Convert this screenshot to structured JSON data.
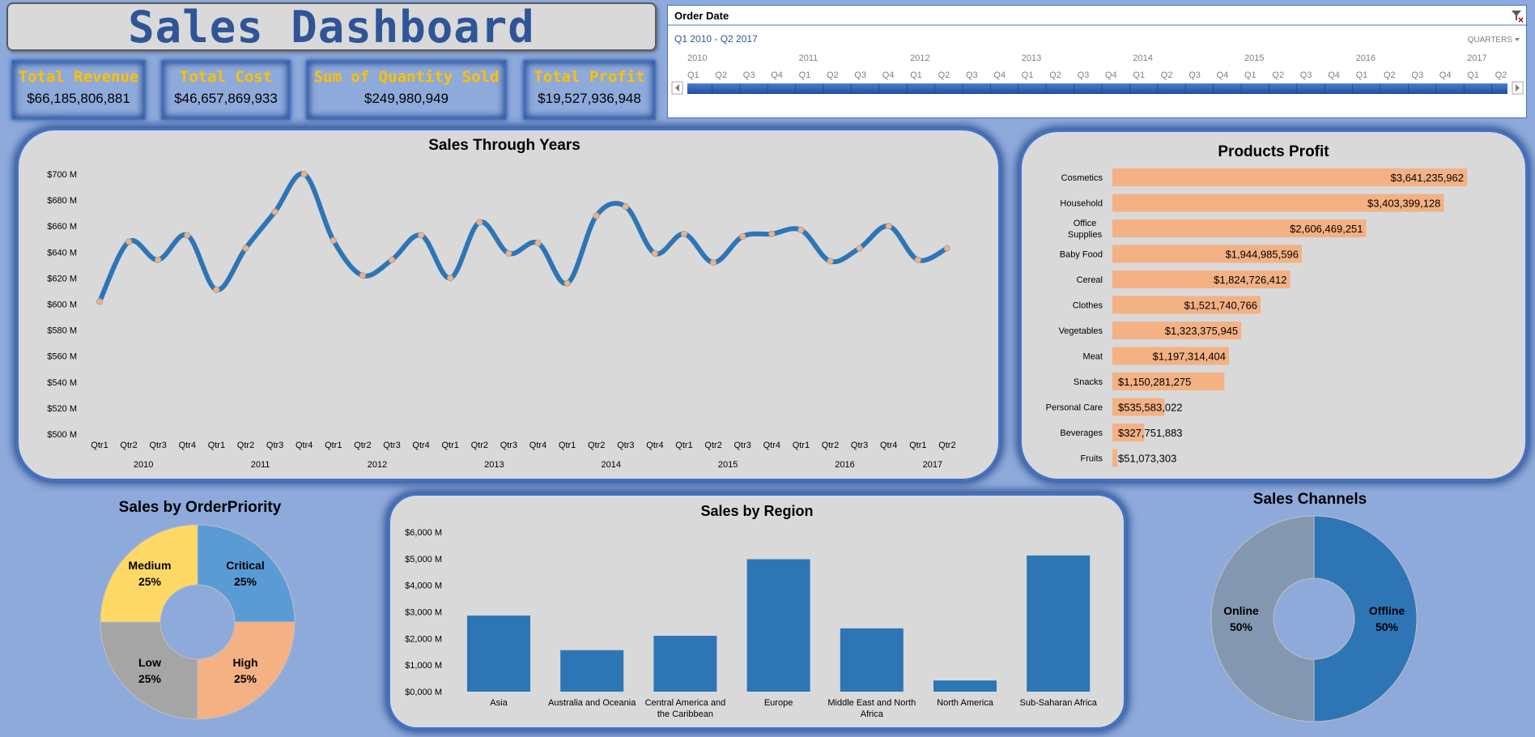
{
  "header": {
    "title": "Sales Dashboard"
  },
  "kpis": [
    {
      "label": "Total Revenue",
      "value": "$66,185,806,881"
    },
    {
      "label": "Total Cost",
      "value": "$46,657,869,933"
    },
    {
      "label": "Sum of Quantity Sold",
      "value": "$249,980,949"
    },
    {
      "label": "Total Profit",
      "value": "$19,527,936,948"
    }
  ],
  "slicer": {
    "title": "Order Date",
    "range": "Q1 2010 - Q2 2017",
    "level": "QUARTERS",
    "years": [
      "2010",
      "2011",
      "2012",
      "2013",
      "2014",
      "2015",
      "2016",
      "2017"
    ],
    "quarters": [
      "Q1",
      "Q2",
      "Q3",
      "Q4"
    ],
    "icons": {
      "clear": "clear-filter-icon",
      "left": "scroll-left-icon",
      "right": "scroll-right-icon",
      "dropdown": "chevron-down-icon"
    }
  },
  "colors": {
    "accent": "#4472c4",
    "line": "#2e75b6",
    "bar_profit": "#f4b183",
    "bar_region": "#2e75b6",
    "title_blue": "#2f5597",
    "kpi_label": "#ffc000"
  },
  "chart_data": [
    {
      "type": "line",
      "title": "Sales Through Years",
      "yticks": [
        "$700 M",
        "$680 M",
        "$660 M",
        "$640 M",
        "$620 M",
        "$600 M",
        "$580 M",
        "$560 M",
        "$540 M",
        "$520 M",
        "$500 M"
      ],
      "ylim": [
        500,
        700
      ],
      "x": [
        "Qtr1",
        "Qtr2",
        "Qtr3",
        "Qtr4",
        "Qtr1",
        "Qtr2",
        "Qtr3",
        "Qtr4",
        "Qtr1",
        "Qtr2",
        "Qtr3",
        "Qtr4",
        "Qtr1",
        "Qtr2",
        "Qtr3",
        "Qtr4",
        "Qtr1",
        "Qtr2",
        "Qtr3",
        "Qtr4",
        "Qtr1",
        "Qtr2",
        "Qtr3",
        "Qtr4",
        "Qtr1",
        "Qtr2",
        "Qtr3",
        "Qtr4",
        "Qtr1",
        "Qtr2"
      ],
      "years": [
        "2010",
        "2011",
        "2012",
        "2013",
        "2014",
        "2015",
        "2016",
        "2017"
      ],
      "year_spans": [
        4,
        4,
        4,
        4,
        4,
        4,
        4,
        2
      ],
      "values": [
        602,
        648,
        634,
        653,
        611,
        643,
        671,
        700,
        649,
        622,
        634,
        653,
        620,
        663,
        639,
        647,
        616,
        668,
        675,
        639,
        654,
        632,
        652,
        654,
        657,
        633,
        643,
        660,
        634,
        643
      ]
    },
    {
      "type": "bar",
      "title": "Products Profit",
      "categories": [
        "Cosmetics",
        "Household",
        "Office Supplies",
        "Baby Food",
        "Cereal",
        "Clothes",
        "Vegetables",
        "Meat",
        "Snacks",
        "Personal Care",
        "Beverages",
        "Fruits"
      ],
      "values": [
        3641235962,
        3403399128,
        2606469251,
        1944985596,
        1824726412,
        1521740766,
        1323375945,
        1197314404,
        1150281275,
        535583022,
        327751883,
        51073303
      ],
      "labels": [
        "$3,641,235,962",
        "$3,403,399,128",
        "$2,606,469,251",
        "$1,944,985,596",
        "$1,824,726,412",
        "$1,521,740,766",
        "$1,323,375,945",
        "$1,197,314,404",
        "$1,150,281,275",
        "$535,583,022",
        "$327,751,883",
        "$51,073,303"
      ]
    },
    {
      "type": "pie",
      "title": "Sales by OrderPriority",
      "slices": [
        {
          "name": "Critical",
          "pct": "25%",
          "value": 25,
          "color": "#5b9bd5"
        },
        {
          "name": "High",
          "pct": "25%",
          "value": 25,
          "color": "#f4b183"
        },
        {
          "name": "Low",
          "pct": "25%",
          "value": 25,
          "color": "#a5a5a5"
        },
        {
          "name": "Medium",
          "pct": "25%",
          "value": 25,
          "color": "#ffd966"
        }
      ]
    },
    {
      "type": "bar",
      "title": "Sales by Region",
      "yticks": [
        "$6,000 M",
        "$5,000 M",
        "$4,000 M",
        "$3,000 M",
        "$2,000 M",
        "$1,000 M",
        "$0,000 M"
      ],
      "ylim": [
        0,
        6000
      ],
      "categories": [
        "Asia",
        "Australia and Oceania",
        "Central America and the Caribbean",
        "Europe",
        "Middle East and North Africa",
        "North America",
        "Sub-Saharan Africa"
      ],
      "values": [
        2860,
        1560,
        2100,
        4980,
        2380,
        420,
        5120
      ]
    },
    {
      "type": "pie",
      "title": "Sales Channels",
      "slices": [
        {
          "name": "Offline",
          "pct": "50%",
          "value": 50,
          "color": "#2e75b6"
        },
        {
          "name": "Online",
          "pct": "50%",
          "value": 50,
          "color": "#8497b0"
        }
      ]
    }
  ]
}
